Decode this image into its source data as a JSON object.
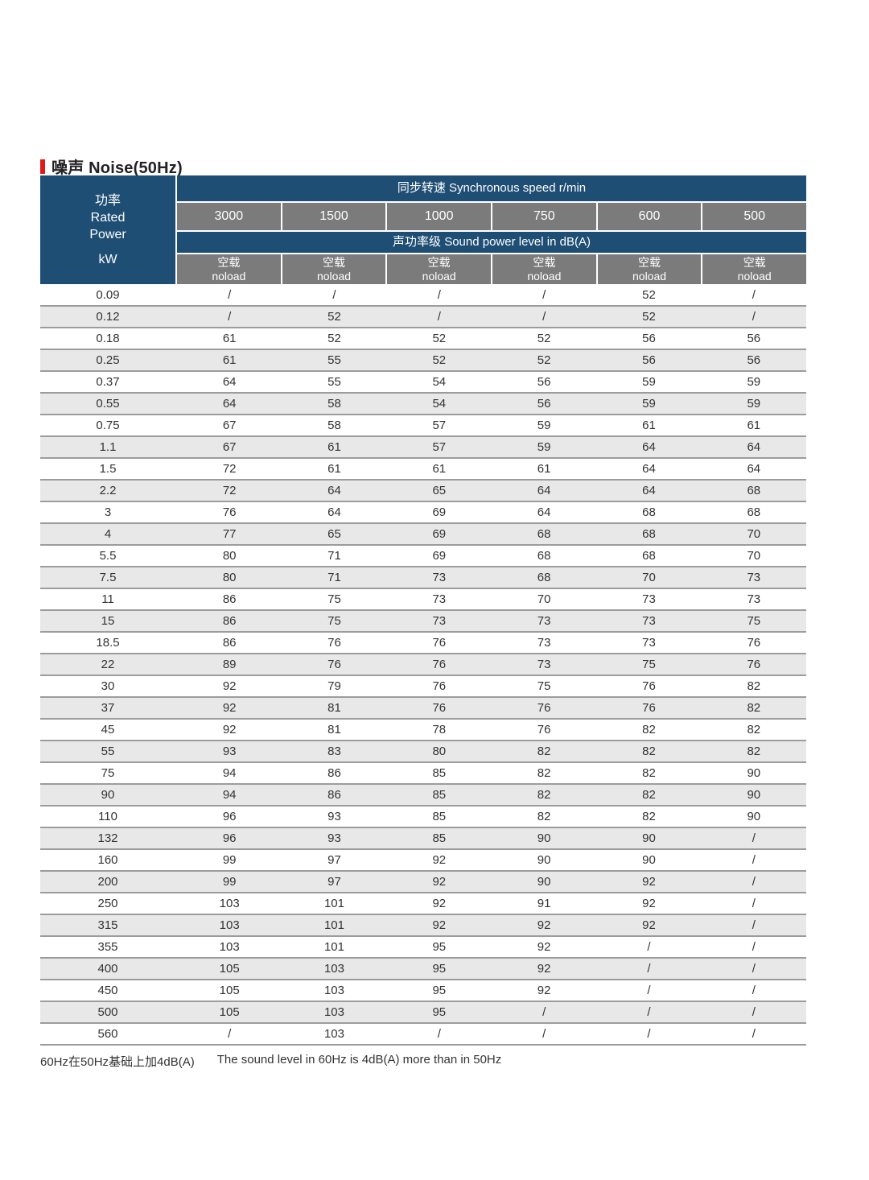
{
  "title": "噪声 Noise(50Hz)",
  "colors": {
    "header_blue": "#1F4E75",
    "header_gray": "#7b7b7b",
    "row_alt_gray": "#e8e8e8",
    "row_border": "#9c9c9c",
    "accent_red": "#e01a15",
    "text_dark": "#333333"
  },
  "table": {
    "power_head": {
      "zh": "功率",
      "en_line1": "Rated",
      "en_line2": "Power",
      "unit": "kW"
    },
    "speed_band": "同步转速 Synchronous speed r/min",
    "speeds": [
      "3000",
      "1500",
      "1000",
      "750",
      "600",
      "500"
    ],
    "sound_band": "声功率级 Sound power level in dB(A)",
    "noload": {
      "zh": "空载",
      "en": "noload"
    },
    "rows": [
      {
        "power": "0.09",
        "values": [
          "/",
          "/",
          "/",
          "/",
          "52",
          "/"
        ]
      },
      {
        "power": "0.12",
        "values": [
          "/",
          "52",
          "/",
          "/",
          "52",
          "/"
        ]
      },
      {
        "power": "0.18",
        "values": [
          "61",
          "52",
          "52",
          "52",
          "56",
          "56"
        ]
      },
      {
        "power": "0.25",
        "values": [
          "61",
          "55",
          "52",
          "52",
          "56",
          "56"
        ]
      },
      {
        "power": "0.37",
        "values": [
          "64",
          "55",
          "54",
          "56",
          "59",
          "59"
        ]
      },
      {
        "power": "0.55",
        "values": [
          "64",
          "58",
          "54",
          "56",
          "59",
          "59"
        ]
      },
      {
        "power": "0.75",
        "values": [
          "67",
          "58",
          "57",
          "59",
          "61",
          "61"
        ]
      },
      {
        "power": "1.1",
        "values": [
          "67",
          "61",
          "57",
          "59",
          "64",
          "64"
        ]
      },
      {
        "power": "1.5",
        "values": [
          "72",
          "61",
          "61",
          "61",
          "64",
          "64"
        ]
      },
      {
        "power": "2.2",
        "values": [
          "72",
          "64",
          "65",
          "64",
          "64",
          "68"
        ]
      },
      {
        "power": "3",
        "values": [
          "76",
          "64",
          "69",
          "64",
          "68",
          "68"
        ]
      },
      {
        "power": "4",
        "values": [
          "77",
          "65",
          "69",
          "68",
          "68",
          "70"
        ]
      },
      {
        "power": "5.5",
        "values": [
          "80",
          "71",
          "69",
          "68",
          "68",
          "70"
        ]
      },
      {
        "power": "7.5",
        "values": [
          "80",
          "71",
          "73",
          "68",
          "70",
          "73"
        ]
      },
      {
        "power": "11",
        "values": [
          "86",
          "75",
          "73",
          "70",
          "73",
          "73"
        ]
      },
      {
        "power": "15",
        "values": [
          "86",
          "75",
          "73",
          "73",
          "73",
          "75"
        ]
      },
      {
        "power": "18.5",
        "values": [
          "86",
          "76",
          "76",
          "73",
          "73",
          "76"
        ]
      },
      {
        "power": "22",
        "values": [
          "89",
          "76",
          "76",
          "73",
          "75",
          "76"
        ]
      },
      {
        "power": "30",
        "values": [
          "92",
          "79",
          "76",
          "75",
          "76",
          "82"
        ]
      },
      {
        "power": "37",
        "values": [
          "92",
          "81",
          "76",
          "76",
          "76",
          "82"
        ]
      },
      {
        "power": "45",
        "values": [
          "92",
          "81",
          "78",
          "76",
          "82",
          "82"
        ]
      },
      {
        "power": "55",
        "values": [
          "93",
          "83",
          "80",
          "82",
          "82",
          "82"
        ]
      },
      {
        "power": "75",
        "values": [
          "94",
          "86",
          "85",
          "82",
          "82",
          "90"
        ]
      },
      {
        "power": "90",
        "values": [
          "94",
          "86",
          "85",
          "82",
          "82",
          "90"
        ]
      },
      {
        "power": "110",
        "values": [
          "96",
          "93",
          "85",
          "82",
          "82",
          "90"
        ]
      },
      {
        "power": "132",
        "values": [
          "96",
          "93",
          "85",
          "90",
          "90",
          "/"
        ]
      },
      {
        "power": "160",
        "values": [
          "99",
          "97",
          "92",
          "90",
          "90",
          "/"
        ]
      },
      {
        "power": "200",
        "values": [
          "99",
          "97",
          "92",
          "90",
          "92",
          "/"
        ]
      },
      {
        "power": "250",
        "values": [
          "103",
          "101",
          "92",
          "91",
          "92",
          "/"
        ]
      },
      {
        "power": "315",
        "values": [
          "103",
          "101",
          "92",
          "92",
          "92",
          "/"
        ]
      },
      {
        "power": "355",
        "values": [
          "103",
          "101",
          "95",
          "92",
          "/",
          "/"
        ]
      },
      {
        "power": "400",
        "values": [
          "105",
          "103",
          "95",
          "92",
          "/",
          "/"
        ]
      },
      {
        "power": "450",
        "values": [
          "105",
          "103",
          "95",
          "92",
          "/",
          "/"
        ]
      },
      {
        "power": "500",
        "values": [
          "105",
          "103",
          "95",
          "/",
          "/",
          "/"
        ]
      },
      {
        "power": "560",
        "values": [
          "/",
          "103",
          "/",
          "/",
          "/",
          "/"
        ]
      }
    ]
  },
  "footnote": {
    "zh": "60Hz在50Hz基础上加4dB(A)",
    "en": "The sound level in 60Hz is 4dB(A) more than in 50Hz"
  }
}
